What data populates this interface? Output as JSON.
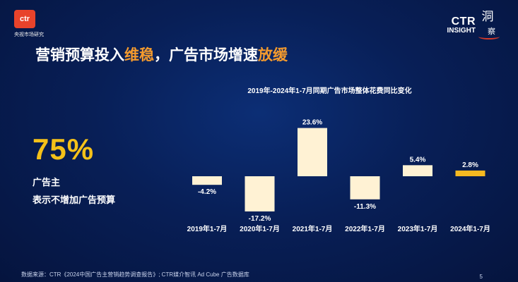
{
  "logo": {
    "badge": "ctr",
    "subtitle": "央视市场研究"
  },
  "insight": {
    "ctr": "CTR",
    "word": "INSIGHT",
    "cn": "洞",
    "cn2": "察"
  },
  "heading": {
    "part1": "营销预算投入",
    "hl1": "维稳",
    "part2": "，广告市场增速",
    "hl2": "放缓"
  },
  "kpi": {
    "value": "75%",
    "label1": "广告主",
    "label2": "表示不增加广告预算"
  },
  "colors": {
    "bar": "#fff2d4",
    "bar_last": "#f5b921",
    "accent": "#f39a2e",
    "kpi": "#f5c119"
  },
  "chart_data": {
    "type": "bar",
    "title": "2019年-2024年1-7月同期广告市场整体花费同比变化",
    "categories": [
      "2019年1-7月",
      "2020年1-7月",
      "2021年1-7月",
      "2022年1-7月",
      "2023年1-7月",
      "2024年1-7月"
    ],
    "values": [
      -4.2,
      -17.2,
      23.6,
      -11.3,
      5.4,
      2.8
    ],
    "data_labels": [
      "-4.2%",
      "-17.2%",
      "23.6%",
      "-11.3%",
      "5.4%",
      "2.8%"
    ],
    "xlabel": "",
    "ylabel": "",
    "grid": false
  },
  "footer": {
    "source": "数据来源：CTR《2024中国广告主营销趋势调查报告》; CTR媒介智讯 Ad Cube 广告数据库",
    "page": "5"
  }
}
